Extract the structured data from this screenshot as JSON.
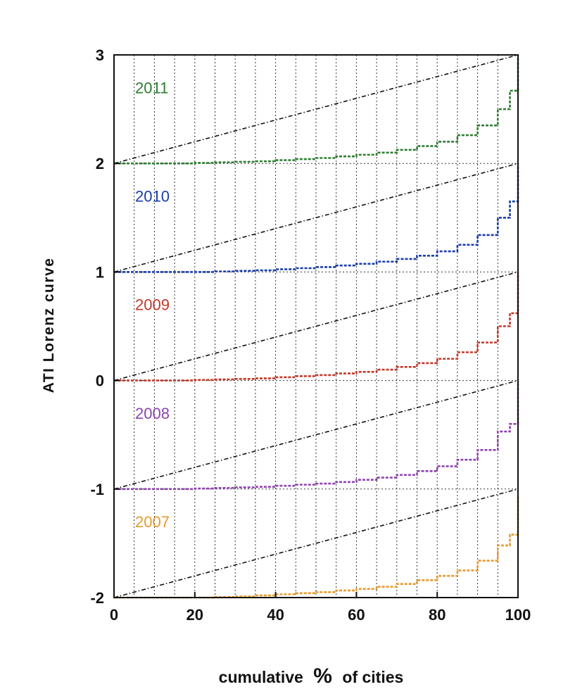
{
  "chart_data": {
    "type": "line",
    "title": "",
    "xlabel": {
      "before": "cumulative",
      "symbol": "%",
      "after": "of cities"
    },
    "ylabel": "ATI Lorenz curve",
    "xlim": [
      0,
      100
    ],
    "ylim": [
      -2,
      3
    ],
    "x_ticks": [
      0,
      20,
      40,
      60,
      80,
      100
    ],
    "x_tick_labels": [
      "0",
      "20",
      "40",
      "60",
      "80",
      "100"
    ],
    "y_ticks": [
      3,
      2,
      1,
      0,
      -1,
      -2
    ],
    "y_tick_labels": [
      "3",
      "2",
      "1",
      "0",
      "-1",
      "-2"
    ],
    "vertical_grid_step": 5,
    "horizontal_grid": [
      -2,
      -1,
      0,
      1,
      2,
      3
    ],
    "grid": "dotted",
    "x": [
      0,
      5,
      10,
      15,
      20,
      25,
      30,
      35,
      40,
      45,
      50,
      55,
      60,
      65,
      70,
      75,
      80,
      85,
      90,
      95,
      98,
      100
    ],
    "series": [
      {
        "name": "2011",
        "offset": 2,
        "color": "#2e7d32",
        "style": "stepped-dashed",
        "values": [
          0,
          0,
          0,
          0,
          0.005,
          0.01,
          0.015,
          0.02,
          0.03,
          0.04,
          0.05,
          0.065,
          0.08,
          0.1,
          0.125,
          0.16,
          0.2,
          0.26,
          0.35,
          0.5,
          0.67,
          1.0
        ]
      },
      {
        "name": "2010",
        "offset": 1,
        "color": "#1a3ea8",
        "style": "stepped-dashed",
        "values": [
          0,
          0,
          0,
          0,
          0,
          0.005,
          0.01,
          0.015,
          0.025,
          0.035,
          0.045,
          0.06,
          0.075,
          0.095,
          0.12,
          0.15,
          0.19,
          0.25,
          0.34,
          0.5,
          0.65,
          1.0
        ]
      },
      {
        "name": "2009",
        "offset": 0,
        "color": "#c0392b",
        "style": "stepped-dashed",
        "values": [
          0,
          0,
          0,
          0,
          0.005,
          0.01,
          0.015,
          0.02,
          0.03,
          0.04,
          0.05,
          0.065,
          0.08,
          0.1,
          0.125,
          0.16,
          0.2,
          0.26,
          0.35,
          0.5,
          0.62,
          1.0
        ]
      },
      {
        "name": "2008",
        "offset": -1,
        "color": "#8e44ad",
        "style": "stepped-dashed",
        "values": [
          0,
          0,
          0,
          0,
          0.005,
          0.01,
          0.015,
          0.02,
          0.03,
          0.04,
          0.05,
          0.065,
          0.085,
          0.105,
          0.13,
          0.165,
          0.21,
          0.27,
          0.36,
          0.53,
          0.6,
          1.0
        ]
      },
      {
        "name": "2007",
        "offset": -2,
        "color": "#e69a2e",
        "style": "stepped-dashed",
        "values": [
          0,
          0,
          0,
          0,
          0,
          0.005,
          0.01,
          0.02,
          0.03,
          0.04,
          0.05,
          0.065,
          0.08,
          0.1,
          0.125,
          0.16,
          0.2,
          0.25,
          0.34,
          0.48,
          0.58,
          0.95
        ]
      }
    ],
    "equality_lines": {
      "style": "dash-dot",
      "color": "#111111",
      "from": 0,
      "to": 1
    }
  }
}
